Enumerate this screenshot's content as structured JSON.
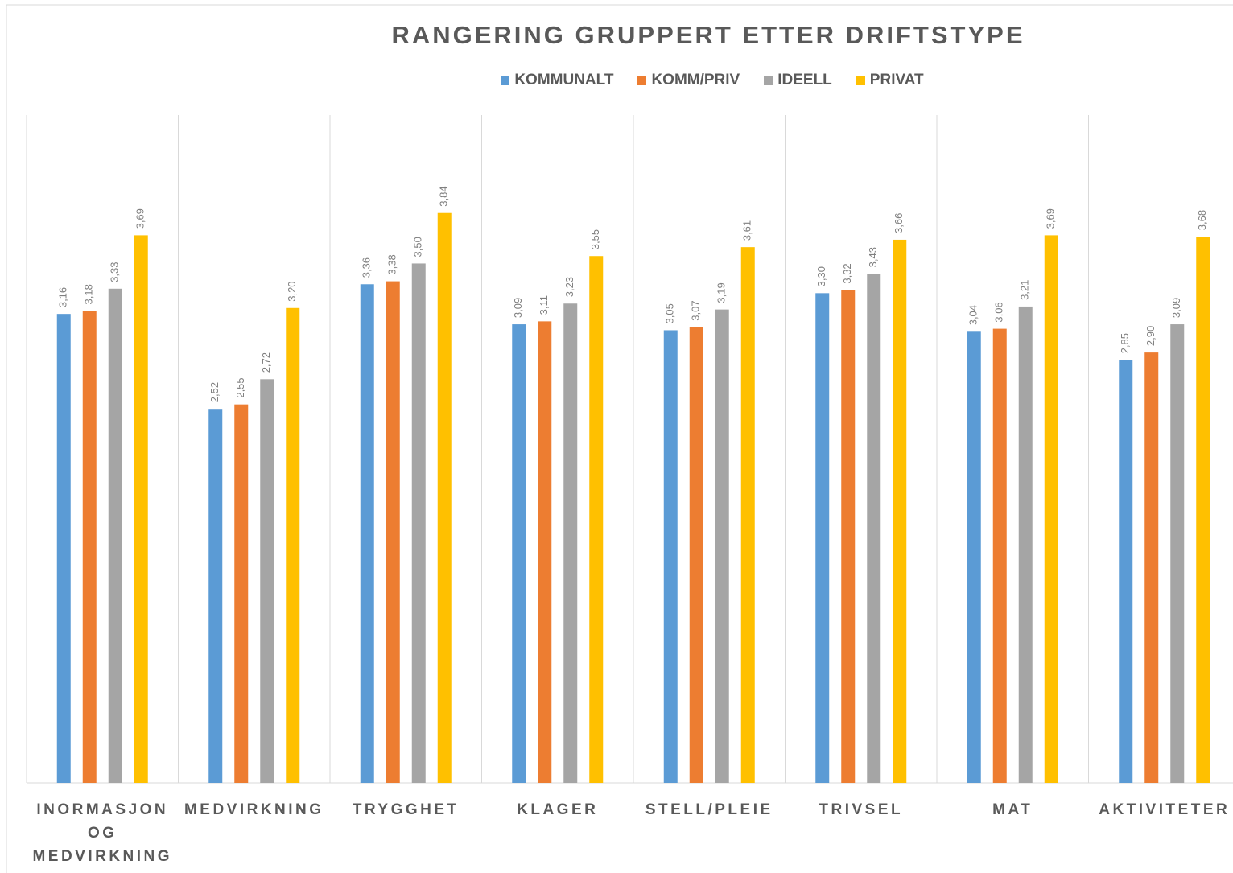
{
  "chart_data": {
    "type": "bar",
    "title": "RANGERING GRUPPERT ETTER DRIFTSTYPE",
    "categories": [
      "INORMASJON OG MEDVIRKNING",
      "MEDVIRKNING",
      "TRYGGHET",
      "KLAGER",
      "STELL/PLEIE",
      "TRIVSEL",
      "MAT",
      "AKTIVITETER"
    ],
    "series": [
      {
        "name": "KOMMUNALT",
        "color": "#5b9bd5",
        "values": [
          3.16,
          2.52,
          3.36,
          3.09,
          3.05,
          3.3,
          3.04,
          2.85
        ],
        "value_labels": [
          "3,16",
          "2,52",
          "3,36",
          "3,09",
          "3,05",
          "3,30",
          "3,04",
          "2,85"
        ]
      },
      {
        "name": "KOMM/PRIV",
        "color": "#ed7d31",
        "values": [
          3.18,
          2.55,
          3.38,
          3.11,
          3.07,
          3.32,
          3.06,
          2.9
        ],
        "value_labels": [
          "3,18",
          "2,55",
          "3,38",
          "3,11",
          "3,07",
          "3,32",
          "3,06",
          "2,90"
        ]
      },
      {
        "name": "IDEELL",
        "color": "#a5a5a5",
        "values": [
          3.33,
          2.72,
          3.5,
          3.23,
          3.19,
          3.43,
          3.21,
          3.09
        ],
        "value_labels": [
          "3,33",
          "2,72",
          "3,50",
          "3,23",
          "3,19",
          "3,43",
          "3,21",
          "3,09"
        ]
      },
      {
        "name": "PRIVAT",
        "color": "#ffc000",
        "values": [
          3.69,
          3.2,
          3.84,
          3.55,
          3.61,
          3.66,
          3.69,
          3.68
        ],
        "value_labels": [
          "3,69",
          "3,20",
          "3,84",
          "3,55",
          "3,61",
          "3,66",
          "3,69",
          "3,68"
        ]
      }
    ],
    "ylim": [
      0,
      4.5
    ],
    "legend": "top"
  }
}
